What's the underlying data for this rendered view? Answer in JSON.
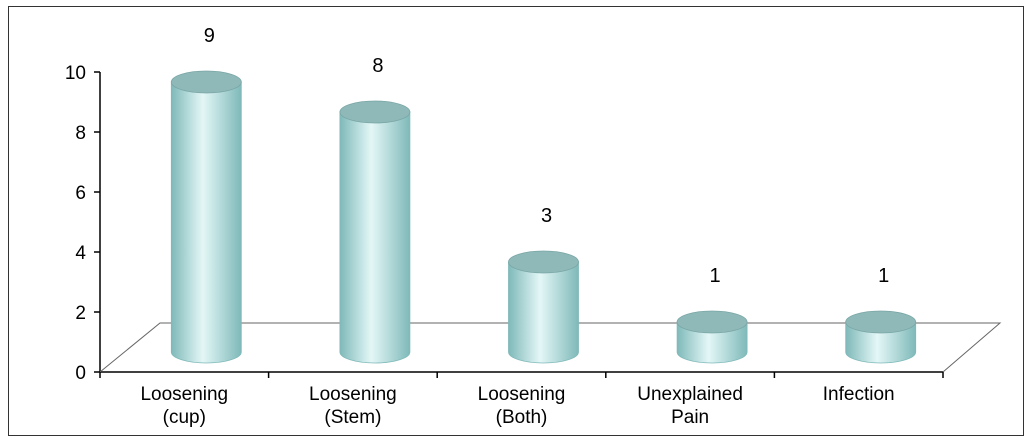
{
  "chart_data": {
    "type": "bar",
    "style": "3d-cylinder",
    "categories": [
      [
        "Loosening",
        "(cup)"
      ],
      [
        "Loosening",
        "(Stem)"
      ],
      [
        "Loosening",
        "(Both)"
      ],
      [
        "Unexplained",
        "Pain"
      ],
      [
        "Infection"
      ]
    ],
    "values": [
      9,
      8,
      3,
      1,
      1
    ],
    "data_labels": [
      "9",
      "8",
      "3",
      "1",
      "1"
    ],
    "yticks": [
      "0",
      "2",
      "4",
      "6",
      "8",
      "10"
    ],
    "ylim": [
      0,
      10
    ],
    "grid": false,
    "legend": "none",
    "colors": {
      "bar_body": "#a9dcdc",
      "bar_highlight": "#e4f7f7",
      "bar_shadow": "#7fb9b9",
      "bar_top": "#8fb8b8",
      "axis": "#000000",
      "floor": "#666666"
    }
  }
}
